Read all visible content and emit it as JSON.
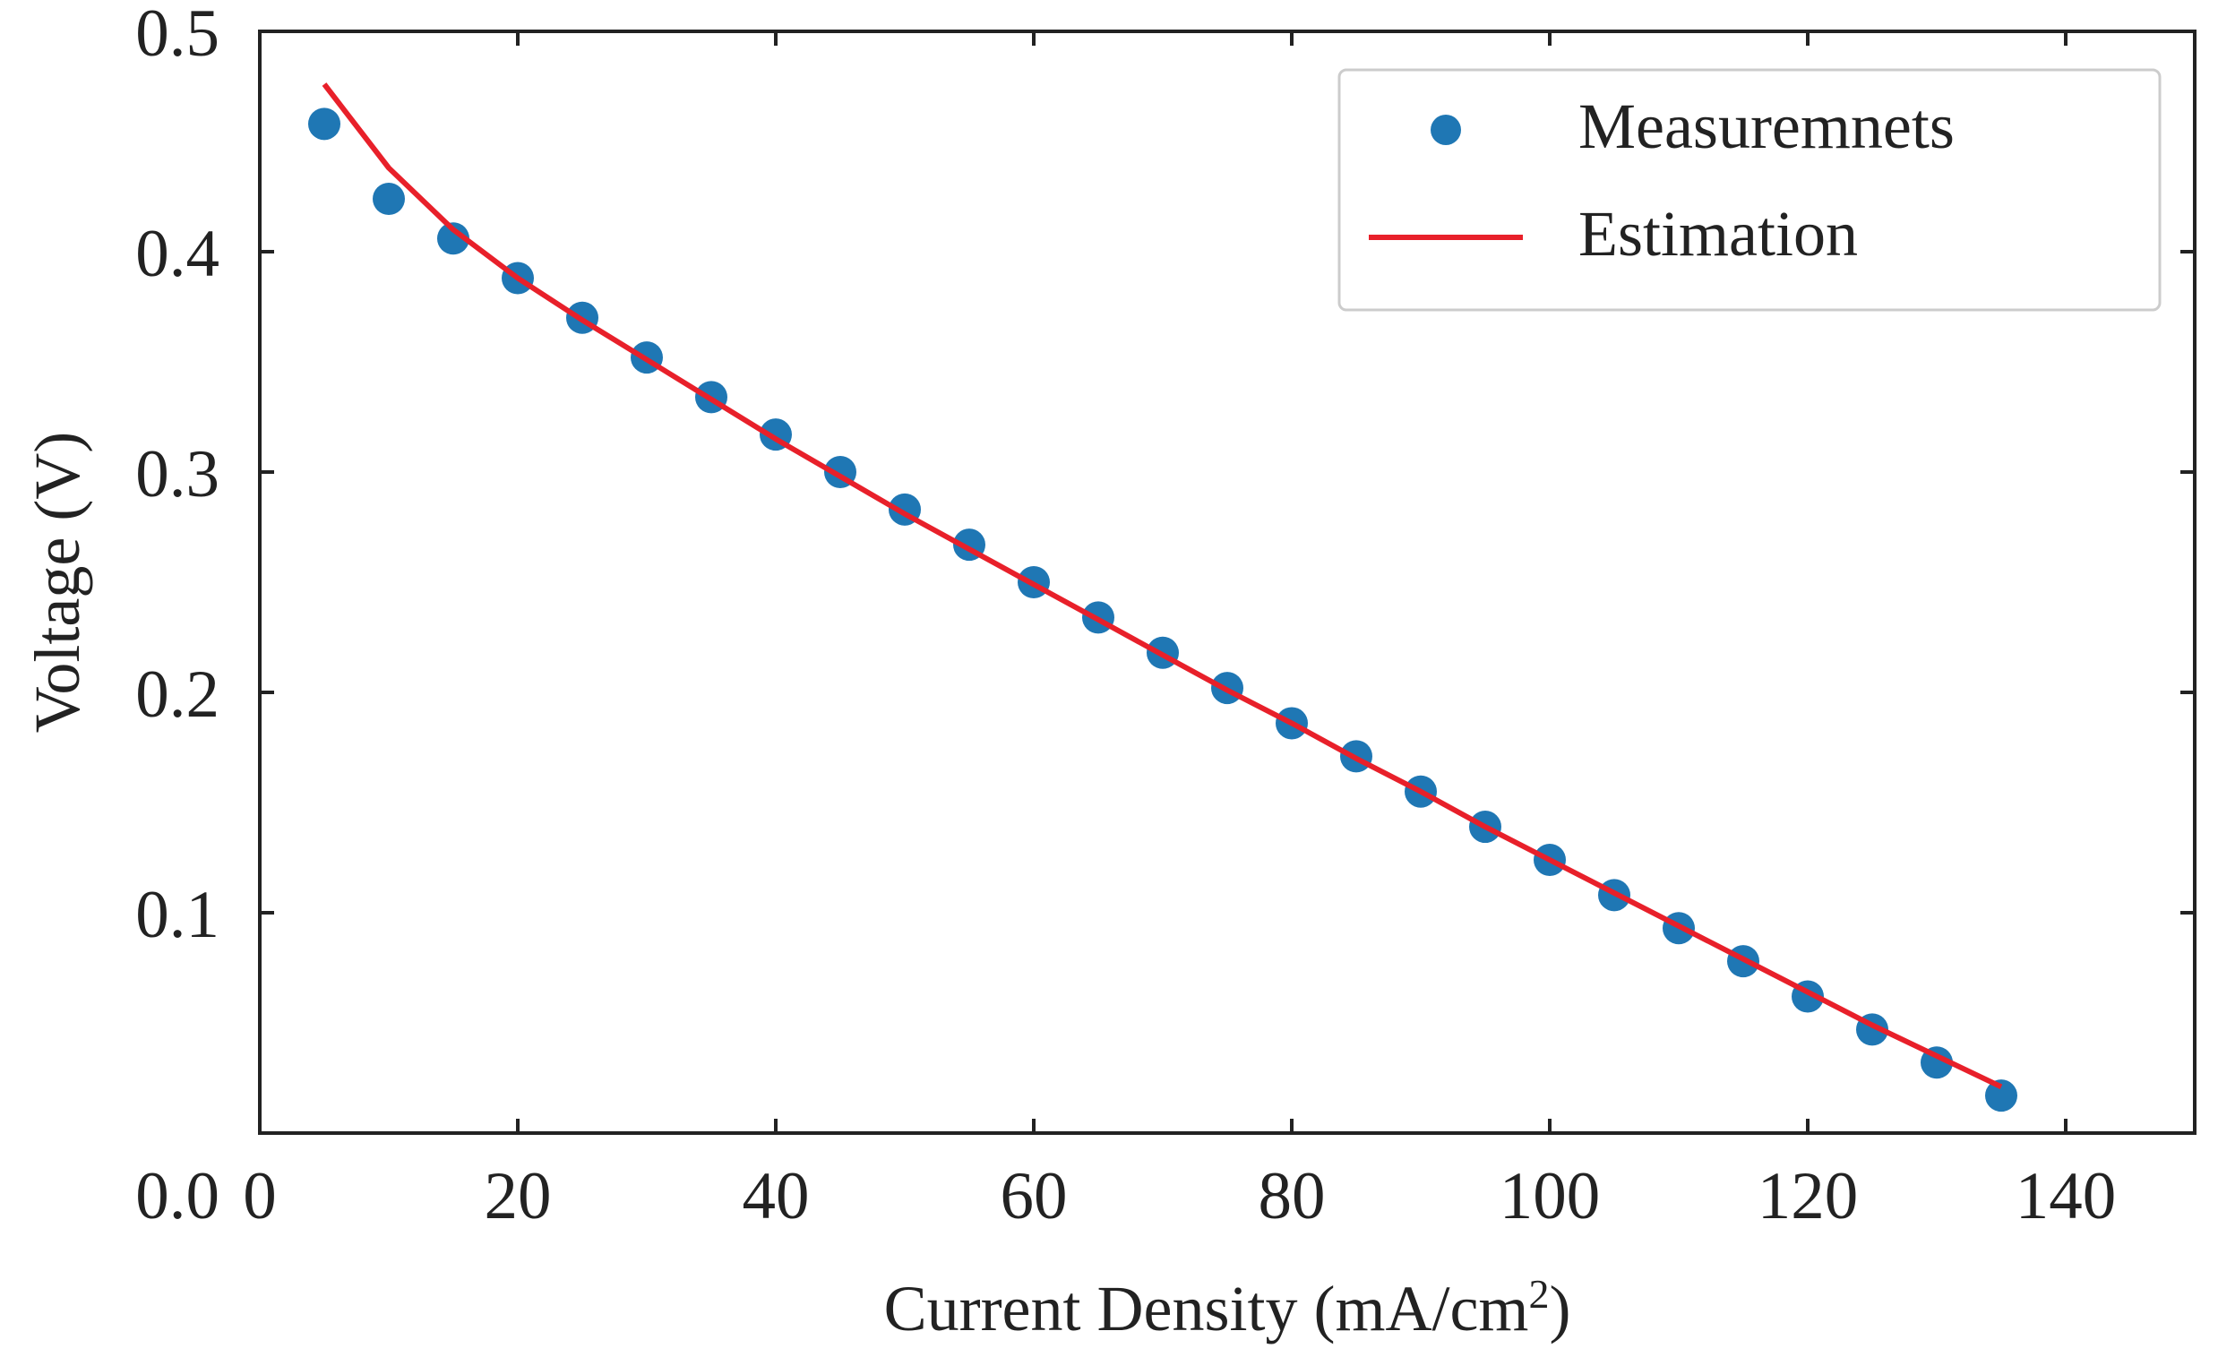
{
  "chart_data": {
    "type": "scatter",
    "title": "",
    "xlabel": "Current Density (mA/cm",
    "xlabel_superscript": "2",
    "xlabel_close": ")",
    "ylabel": "Voltage (V)",
    "xlim": [
      0,
      150
    ],
    "ylim": [
      0,
      0.5
    ],
    "xticks": [
      0,
      20,
      40,
      60,
      80,
      100,
      120,
      140
    ],
    "yticks": [
      0.0,
      0.1,
      0.2,
      0.3,
      0.4,
      0.5
    ],
    "xtick_labels": [
      "0",
      "20",
      "40",
      "60",
      "80",
      "100",
      "120",
      "140"
    ],
    "ytick_labels": [
      "0.0",
      "0.1",
      "0.2",
      "0.3",
      "0.4",
      "0.5"
    ],
    "grid": false,
    "legend_position": "top-right",
    "series": [
      {
        "name": "Measuremnets",
        "kind": "scatter",
        "color": "#1f77b4",
        "x": [
          5,
          10,
          15,
          20,
          25,
          30,
          35,
          40,
          45,
          50,
          55,
          60,
          65,
          70,
          75,
          80,
          85,
          90,
          95,
          100,
          105,
          110,
          115,
          120,
          125,
          130,
          135
        ],
        "y": [
          0.458,
          0.424,
          0.406,
          0.388,
          0.37,
          0.352,
          0.334,
          0.317,
          0.3,
          0.283,
          0.267,
          0.25,
          0.234,
          0.218,
          0.202,
          0.186,
          0.171,
          0.155,
          0.139,
          0.124,
          0.108,
          0.093,
          0.078,
          0.062,
          0.047,
          0.032,
          0.017
        ]
      },
      {
        "name": "Estimation",
        "kind": "line",
        "color": "#e8202a",
        "x": [
          5,
          10,
          15,
          20,
          25,
          30,
          35,
          40,
          45,
          50,
          55,
          60,
          65,
          70,
          75,
          80,
          85,
          90,
          95,
          100,
          105,
          110,
          115,
          120,
          125,
          130,
          135
        ],
        "y": [
          0.476,
          0.438,
          0.41,
          0.388,
          0.369,
          0.351,
          0.333,
          0.315,
          0.298,
          0.281,
          0.265,
          0.249,
          0.233,
          0.217,
          0.201,
          0.186,
          0.17,
          0.155,
          0.139,
          0.124,
          0.109,
          0.094,
          0.079,
          0.064,
          0.049,
          0.035,
          0.021
        ]
      }
    ]
  }
}
